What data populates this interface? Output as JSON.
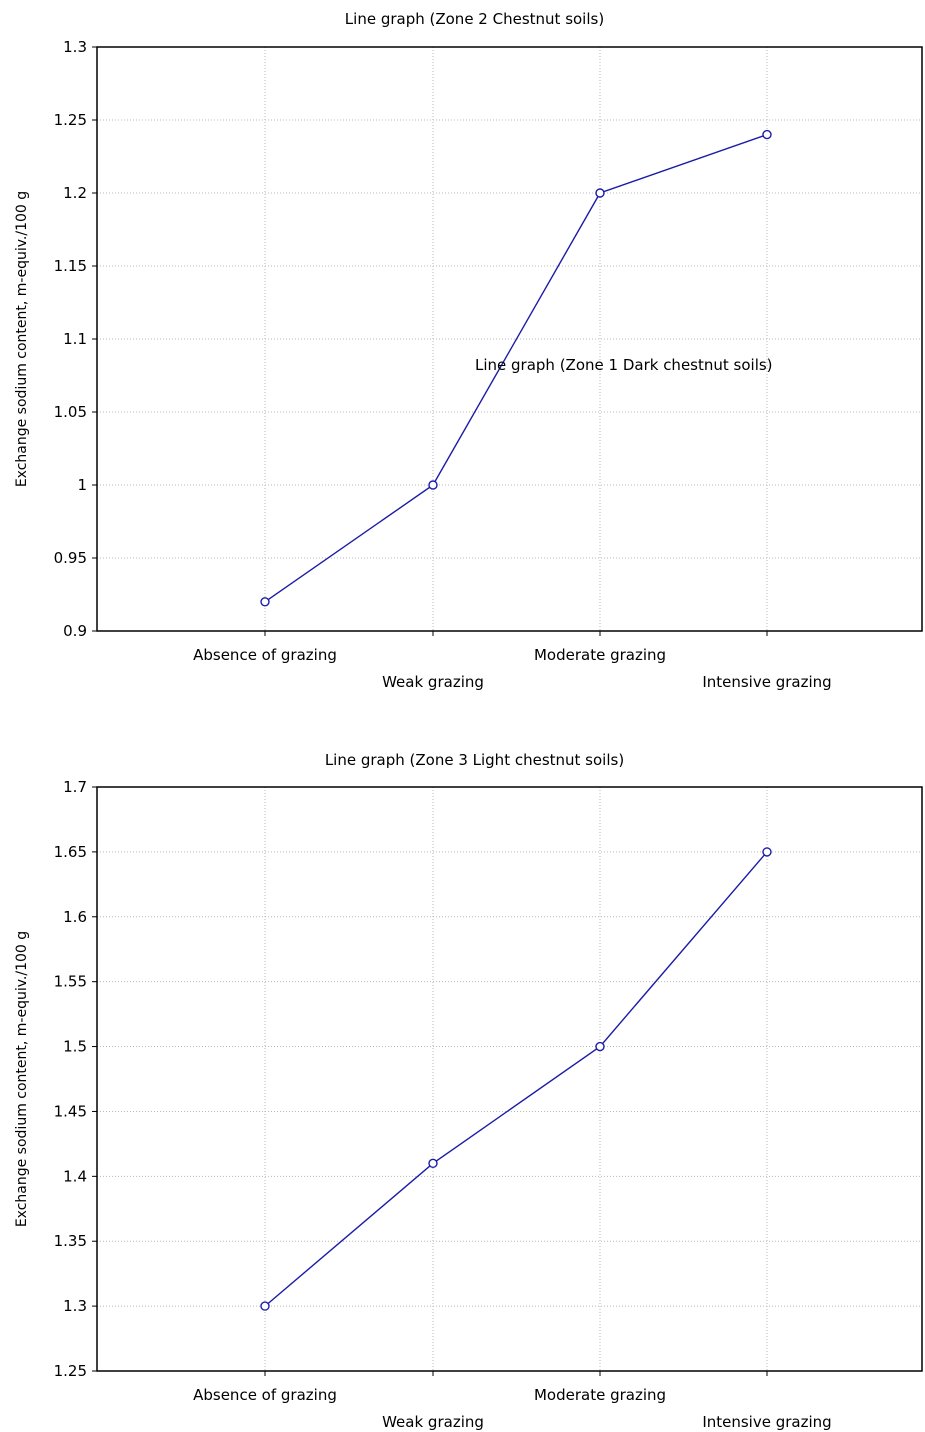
{
  "chart_data": [
    {
      "type": "line",
      "title": "Line graph (Zone 2 Chestnut soils)",
      "annotation": "Line graph (Zone 1 Dark chestnut soils)",
      "ylabel": "Exchange sodium content, m-equiv./100 g",
      "xlabel": "",
      "categories": [
        "Absence of grazing",
        "Weak grazing",
        "Moderate grazing",
        "Intensive grazing"
      ],
      "ylim": [
        0.9,
        1.3
      ],
      "yticks": [
        "0.9",
        "0.95",
        "1",
        "1.05",
        "1.1",
        "1.15",
        "1.2",
        "1.25",
        "1.3"
      ],
      "grid": true,
      "legend": "none",
      "series": [
        {
          "values": [
            0.92,
            1.0,
            1.2,
            1.24
          ],
          "color": "#1c1ca8"
        }
      ]
    },
    {
      "type": "line",
      "title": "Line graph (Zone 3 Light chestnut soils)",
      "ylabel": "Exchange sodium content, m-equiv./100 g",
      "xlabel": "",
      "categories": [
        "Absence of grazing",
        "Weak grazing",
        "Moderate grazing",
        "Intensive grazing"
      ],
      "ylim": [
        1.25,
        1.7
      ],
      "yticks": [
        "1.25",
        "1.3",
        "1.35",
        "1.4",
        "1.45",
        "1.5",
        "1.55",
        "1.6",
        "1.65",
        "1.7"
      ],
      "grid": true,
      "legend": "none",
      "series": [
        {
          "values": [
            1.3,
            1.41,
            1.5,
            1.65
          ],
          "color": "#1c1ca8"
        }
      ]
    }
  ]
}
